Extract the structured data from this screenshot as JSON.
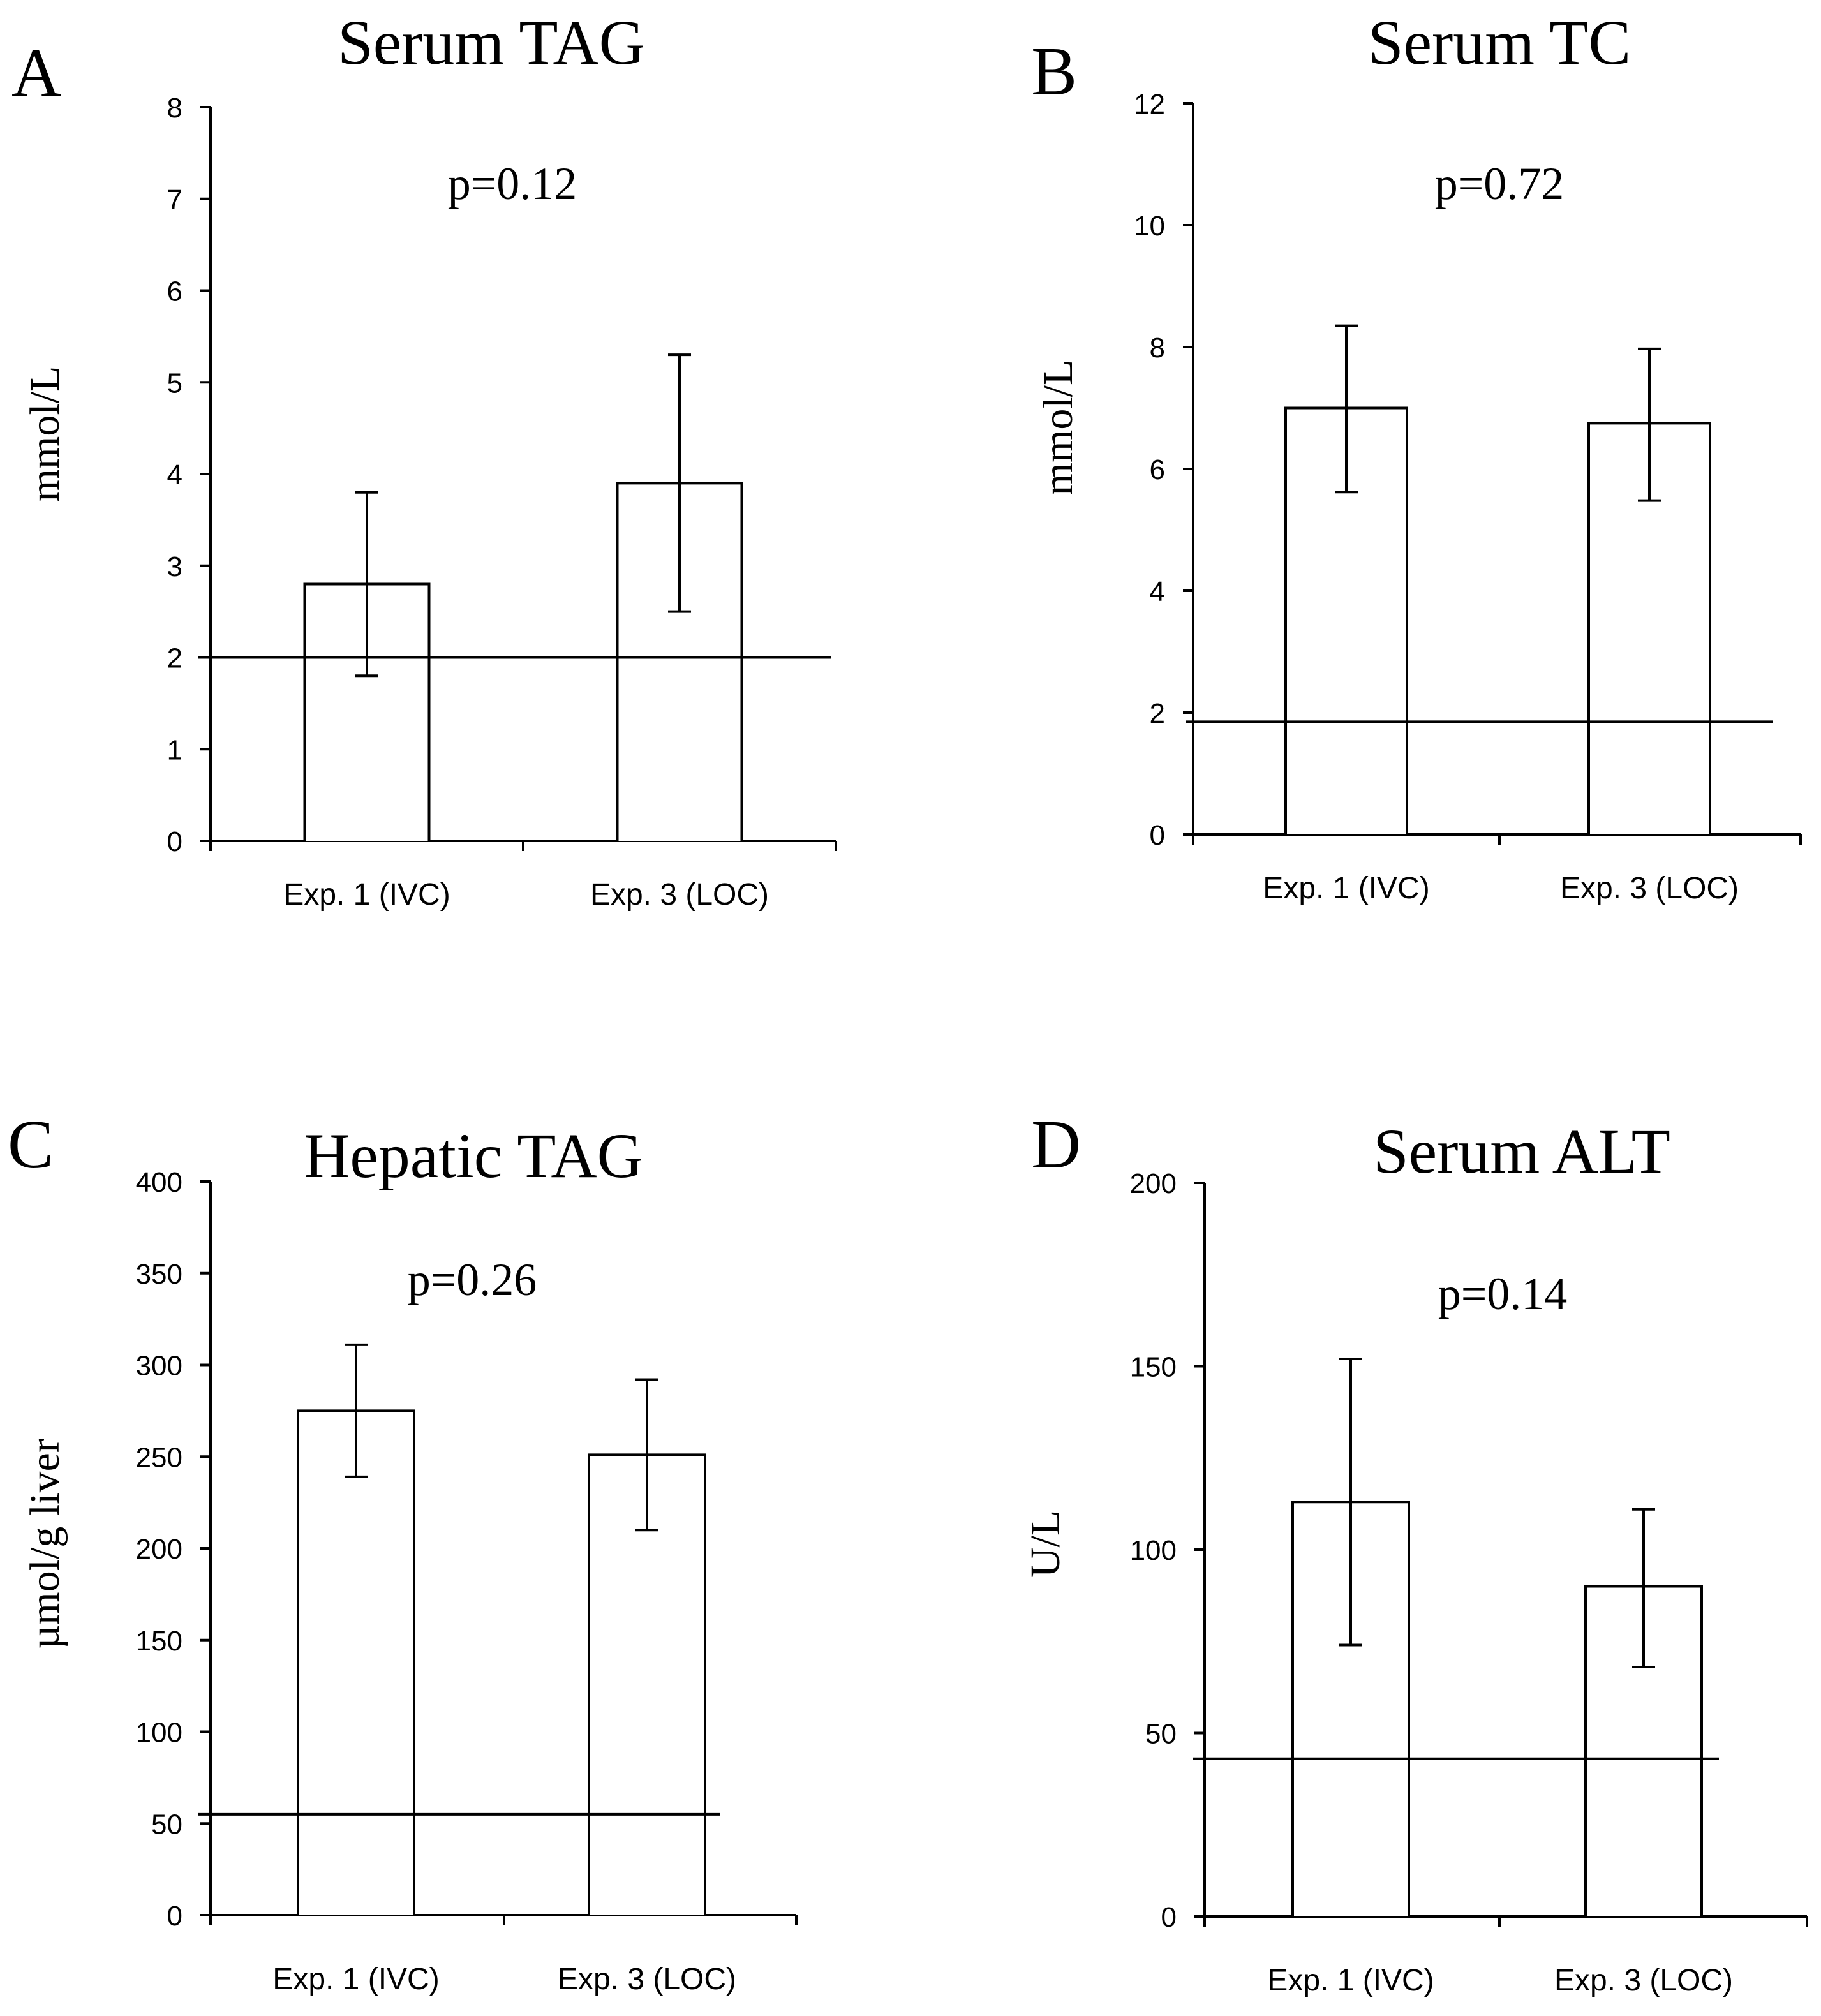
{
  "chart_data": [
    {
      "type": "bar",
      "panel_label": "A",
      "title": "Serum TAG",
      "ylabel": "mmol/L",
      "xlabel": "",
      "ylim": [
        0,
        8
      ],
      "yticks": [
        0,
        1,
        2,
        3,
        4,
        5,
        6,
        7,
        8
      ],
      "categories": [
        "Exp. 1 (IVC)",
        "Exp. 3 (LOC)"
      ],
      "values": [
        2.8,
        3.9
      ],
      "error_high": [
        3.8,
        5.3
      ],
      "error_low": [
        1.8,
        2.5
      ],
      "reference_line": 2.0,
      "annotation": "p=0.12",
      "grid": false
    },
    {
      "type": "bar",
      "panel_label": "B",
      "title": "Serum TC",
      "ylabel": "mmol/L",
      "xlabel": "",
      "ylim": [
        0,
        12
      ],
      "yticks": [
        0,
        2,
        4,
        6,
        8,
        10,
        12
      ],
      "categories": [
        "Exp. 1 (IVC)",
        "Exp. 3 (LOC)"
      ],
      "values": [
        7.0,
        6.75
      ],
      "error_high": [
        8.35,
        7.97
      ],
      "error_low": [
        5.62,
        5.48
      ],
      "reference_line": 1.85,
      "annotation": "p=0.72",
      "grid": false
    },
    {
      "type": "bar",
      "panel_label": "C",
      "title": "Hepatic TAG",
      "ylabel": "µmol/g liver",
      "xlabel": "",
      "ylim": [
        0,
        400
      ],
      "yticks": [
        0,
        50,
        100,
        150,
        200,
        250,
        300,
        350,
        400
      ],
      "categories": [
        "Exp. 1 (IVC)",
        "Exp. 3 (LOC)"
      ],
      "values": [
        275,
        251
      ],
      "error_high": [
        311,
        292
      ],
      "error_low": [
        239,
        210
      ],
      "reference_line": 55,
      "annotation": "p=0.26",
      "grid": false
    },
    {
      "type": "bar",
      "panel_label": "D",
      "title": "Serum ALT",
      "ylabel": "U/L",
      "xlabel": "",
      "ylim": [
        0,
        200
      ],
      "yticks": [
        0,
        50,
        100,
        150,
        200
      ],
      "categories": [
        "Exp. 1 (IVC)",
        "Exp. 3 (LOC)"
      ],
      "values": [
        113,
        90
      ],
      "error_high": [
        152,
        111
      ],
      "error_low": [
        74,
        68
      ],
      "reference_line": 43,
      "annotation": "p=0.14",
      "grid": false
    }
  ]
}
